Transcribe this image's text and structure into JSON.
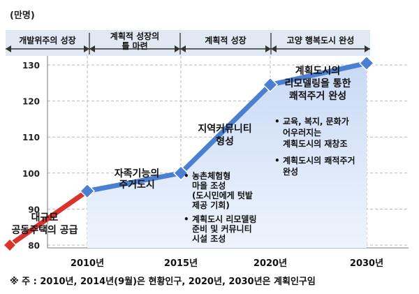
{
  "chart_data": {
    "type": "line",
    "unit_label": "(만명)",
    "x": [
      "2010년",
      "2015년",
      "2020년",
      "2030년"
    ],
    "ylim": [
      80,
      130
    ],
    "yticks": [
      80,
      90,
      100,
      110,
      120,
      130
    ],
    "grid": true,
    "series": [
      {
        "segment": "initial",
        "color": "#d9332b",
        "points": [
          [
            2005,
            80
          ],
          [
            2010,
            95
          ]
        ]
      },
      {
        "segment": "main",
        "color": "#4a7fd2",
        "points": [
          [
            2010,
            95
          ],
          [
            2015,
            100
          ],
          [
            2020,
            124.5
          ],
          [
            2030,
            130.5
          ]
        ]
      }
    ],
    "phases": [
      {
        "label": "개발위주의 성장"
      },
      {
        "label_lines": [
          "계획적 성장의",
          "틀 마련"
        ]
      },
      {
        "label": "계획적 성장"
      },
      {
        "label": "고양 행복도시 완성"
      }
    ],
    "annotations": [
      {
        "id": "bulk-housing",
        "lines": [
          "대규모",
          "공동주택의 공급"
        ]
      },
      {
        "id": "self-sufficient",
        "lines": [
          "자족기능의",
          "주거도시"
        ]
      },
      {
        "id": "community",
        "lines": [
          "지역커뮤니티",
          "형성"
        ]
      },
      {
        "id": "remodeling",
        "lines": [
          "계획도시의",
          "리모델링을 통한",
          "쾌적주거 완성"
        ]
      },
      {
        "id": "bullets-2015",
        "items": [
          [
            "농촌체험형",
            "마을 조성",
            "(도시민에게 텃밭",
            "제공 기회)"
          ],
          [
            "계획도시 리모델링",
            "준비 및 커뮤니티",
            "시설 조성"
          ]
        ]
      },
      {
        "id": "bullets-2020",
        "items": [
          [
            "교육, 복지, 문화가",
            "어우러지는",
            "계획도시의 재창조"
          ],
          [
            "계획도시의 쾌적주거",
            "완성"
          ]
        ]
      }
    ]
  },
  "footnote": "※ 주 : 2010년, 2014년(9월)은 현황인구, 2020년, 2030년은 계획인구임",
  "colors": {
    "grid": "#b8b8b8",
    "fill_top": "#c9daf5",
    "fill_bottom": "#eef4fd",
    "phase_bar": "#dfe8f3"
  }
}
